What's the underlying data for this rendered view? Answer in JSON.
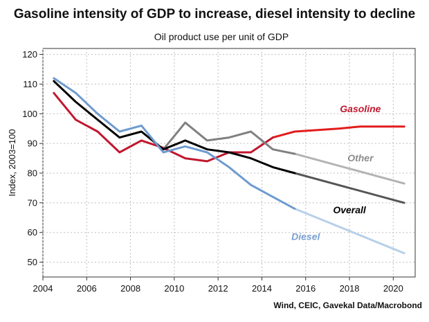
{
  "chart_data": {
    "type": "line",
    "title": "Gasoline intensity of GDP to increase, diesel intensity to decline",
    "subtitle": "Oil product use per unit of GDP",
    "ylabel": "Index, 2003=100",
    "xlabel": "",
    "xlim": [
      2004,
      2021
    ],
    "ylim": [
      45,
      122
    ],
    "x_ticks": [
      "2004",
      "2006",
      "2008",
      "2010",
      "2012",
      "2014",
      "2016",
      "2018",
      "2020"
    ],
    "y_ticks": [
      "50",
      "60",
      "70",
      "80",
      "90",
      "100",
      "110",
      "120"
    ],
    "grid": true,
    "source": "Wind, CEIC, Gavekal Data/Macrobond",
    "series": [
      {
        "name": "Gasoline",
        "color": "#c1172f",
        "projection_color": "#e31c1c",
        "points": [
          [
            2004.5,
            107
          ],
          [
            2005.5,
            98
          ],
          [
            2006.5,
            94
          ],
          [
            2007.5,
            87
          ],
          [
            2008.5,
            91
          ],
          [
            2009.5,
            88.5
          ],
          [
            2010.5,
            85
          ],
          [
            2011.5,
            84
          ],
          [
            2012.5,
            87
          ],
          [
            2013.5,
            87
          ],
          [
            2014.5,
            92
          ]
        ],
        "projection": [
          [
            2014.5,
            92
          ],
          [
            2015.5,
            94
          ],
          [
            2016.5,
            94.5
          ],
          [
            2017.5,
            95
          ],
          [
            2018.5,
            95.7
          ],
          [
            2019.5,
            95.7
          ],
          [
            2020.5,
            95.7
          ]
        ]
      },
      {
        "name": "Other",
        "color": "#808080",
        "projection_color": "#b3b3b3",
        "points": [
          [
            2009.5,
            88
          ],
          [
            2010.5,
            97
          ],
          [
            2011.5,
            91
          ],
          [
            2012.5,
            92
          ],
          [
            2013.5,
            94
          ],
          [
            2014.5,
            88
          ],
          [
            2015.5,
            86.5
          ]
        ],
        "projection": [
          [
            2015.5,
            86.5
          ],
          [
            2020.5,
            76.5
          ]
        ]
      },
      {
        "name": "Overall",
        "color": "#000000",
        "projection_color": "#555555",
        "points": [
          [
            2004.5,
            111
          ],
          [
            2005.5,
            104
          ],
          [
            2006.5,
            98
          ],
          [
            2007.5,
            92
          ],
          [
            2008.5,
            94
          ],
          [
            2009.5,
            88
          ],
          [
            2010.5,
            91
          ],
          [
            2011.5,
            88
          ],
          [
            2012.5,
            87
          ],
          [
            2013.5,
            85
          ],
          [
            2014.5,
            82
          ],
          [
            2015.5,
            80
          ]
        ],
        "projection": [
          [
            2015.5,
            80
          ],
          [
            2020.5,
            70
          ]
        ]
      },
      {
        "name": "Diesel",
        "color": "#6e9bcf",
        "projection_color": "#b7d0ea",
        "points": [
          [
            2004.5,
            112
          ],
          [
            2005.5,
            107
          ],
          [
            2006.5,
            100
          ],
          [
            2007.5,
            94
          ],
          [
            2008.5,
            96
          ],
          [
            2009.5,
            87
          ],
          [
            2010.5,
            89
          ],
          [
            2011.5,
            87
          ],
          [
            2012.5,
            82
          ],
          [
            2013.5,
            76
          ],
          [
            2014.5,
            72
          ],
          [
            2015.5,
            68
          ]
        ],
        "projection": [
          [
            2015.5,
            68
          ],
          [
            2020.5,
            53
          ]
        ]
      }
    ],
    "annotations": [
      {
        "text": "Gasoline",
        "color": "#c1172f",
        "x": 2018.5,
        "y": 100.5
      },
      {
        "text": "Other",
        "color": "#8c8c8c",
        "x": 2018.5,
        "y": 84
      },
      {
        "text": "Overall",
        "color": "#000000",
        "x": 2018.0,
        "y": 66.5
      },
      {
        "text": "Diesel",
        "color": "#7a9fcf",
        "x": 2016.0,
        "y": 57.5
      }
    ]
  }
}
